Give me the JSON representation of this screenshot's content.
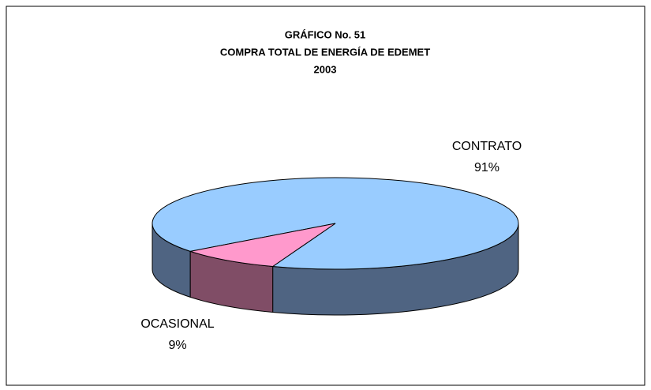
{
  "chart_data": {
    "type": "pie3d",
    "title": [
      "GRÁFICO No.  51",
      "COMPRA TOTAL DE ENERGÍA DE EDEMET",
      "2003"
    ],
    "categories": [
      "CONTRATO",
      "OCASIONAL"
    ],
    "values": [
      91,
      9
    ],
    "value_labels": [
      "91%",
      "9%"
    ],
    "colors": [
      "#99ccff",
      "#ff99cc"
    ],
    "side_colors": [
      "#4f6482",
      "#804d66"
    ]
  }
}
